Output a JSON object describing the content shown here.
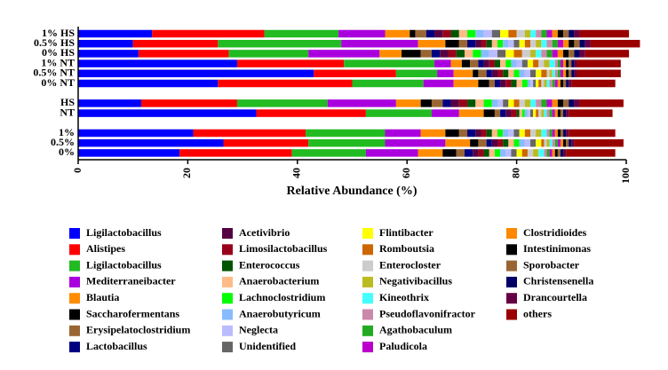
{
  "chart_data": {
    "type": "stacked-bar-horizontal",
    "x_label": "Relative Abundance (%)",
    "categories": [
      "1% HS",
      "0.5% HS",
      "0% HS",
      "1% NT",
      "0.5% NT",
      "0% NT",
      null,
      "HS",
      "NT",
      null,
      "1%",
      "0.5%",
      "0%"
    ],
    "xlim": [
      0,
      100
    ],
    "xticks": [
      0,
      20,
      40,
      60,
      80,
      100
    ],
    "series": [
      {
        "name": "Ligilactobacillus",
        "color": "#0000ff",
        "values": [
          13.5,
          10,
          11,
          29,
          43,
          25.5,
          null,
          11.5,
          32.5,
          null,
          21,
          26.5,
          18.5
        ]
      },
      {
        "name": "Alistipes",
        "color": "#ff0000",
        "values": [
          20.5,
          15.5,
          16.5,
          19.5,
          15,
          24.5,
          null,
          17.5,
          20,
          null,
          20.5,
          15.5,
          20.5
        ]
      },
      {
        "name": "Ligilactobacillus",
        "color": "#22bb22",
        "values": [
          13.5,
          22.5,
          14.5,
          16.5,
          7.5,
          13,
          null,
          16.5,
          12,
          null,
          14.5,
          14,
          13.5
        ]
      },
      {
        "name": "Mediterraneibacter",
        "color": "#aa00dd",
        "values": [
          8.5,
          14,
          13,
          3,
          3,
          5.5,
          null,
          12.5,
          5,
          null,
          6.5,
          11,
          9.5
        ]
      },
      {
        "name": "Blautia",
        "color": "#ff8c00",
        "values": [
          4.5,
          5,
          4,
          2,
          3.5,
          4.5,
          null,
          4.5,
          4.5,
          null,
          4.5,
          4.5,
          4.5
        ]
      },
      {
        "name": "Saccharofermentans",
        "color": "#000000",
        "values": [
          1,
          2.5,
          3.5,
          1.5,
          1,
          2,
          null,
          2,
          2,
          null,
          2.5,
          1.5,
          2.5
        ]
      },
      {
        "name": "Erysipelatoclostridium",
        "color": "#996633",
        "values": [
          2,
          1.5,
          2,
          1.5,
          1.5,
          1,
          null,
          2,
          1,
          null,
          1.5,
          1.5,
          1.5
        ]
      },
      {
        "name": "Lactobacillus",
        "color": "#000080",
        "values": [
          1.5,
          1.5,
          1.5,
          1,
          1,
          1,
          null,
          1.5,
          1,
          null,
          1.5,
          1,
          1.5
        ]
      },
      {
        "name": "Acetivibrio",
        "color": "#550044",
        "values": [
          1.5,
          1,
          1.5,
          1,
          1,
          1,
          null,
          1.5,
          1,
          null,
          1,
          1,
          1
        ]
      },
      {
        "name": "Limosilactobacillus",
        "color": "#99001a",
        "values": [
          1.5,
          1,
          1.5,
          1,
          1,
          1,
          null,
          1.5,
          1,
          null,
          1,
          1,
          1
        ]
      },
      {
        "name": "Enterococcus",
        "color": "#005500",
        "values": [
          1.5,
          1,
          1.5,
          1,
          1,
          1,
          null,
          1.5,
          0.5,
          null,
          1,
          1,
          1
        ]
      },
      {
        "name": "Anaerobacterium",
        "color": "#ffbb88",
        "values": [
          1.5,
          1,
          1.5,
          1,
          1,
          1,
          null,
          1.5,
          0.5,
          null,
          1,
          1,
          1
        ]
      },
      {
        "name": "Lachnoclostridium",
        "color": "#00ff00",
        "values": [
          1.5,
          1,
          1.5,
          1,
          1,
          1,
          null,
          1.5,
          0.5,
          null,
          1,
          1,
          1
        ]
      },
      {
        "name": "Anaerobutyricum",
        "color": "#88bbff",
        "values": [
          1.5,
          1,
          1.5,
          1,
          1,
          0.5,
          null,
          1,
          0.5,
          null,
          1,
          1,
          1
        ]
      },
      {
        "name": "Neglecta",
        "color": "#bbbbff",
        "values": [
          1.5,
          1,
          1.5,
          1,
          1,
          0.5,
          null,
          1,
          0.5,
          null,
          1,
          1,
          1
        ]
      },
      {
        "name": "Unidentified",
        "color": "#666666",
        "values": [
          1.5,
          1,
          1.5,
          1,
          1,
          0.5,
          null,
          1,
          0.5,
          null,
          1,
          1,
          1
        ]
      },
      {
        "name": "Flintibacter",
        "color": "#ffff00",
        "values": [
          1.5,
          1,
          1.5,
          1,
          1,
          0.5,
          null,
          1,
          0.5,
          null,
          1,
          1,
          1
        ]
      },
      {
        "name": "Romboutsia",
        "color": "#cc6600",
        "values": [
          1.5,
          1,
          1.5,
          1,
          1,
          0.5,
          null,
          1,
          0.5,
          null,
          1,
          0.5,
          1
        ]
      },
      {
        "name": "Enterocloster",
        "color": "#cccccc",
        "values": [
          1.5,
          1,
          1.5,
          1,
          0.5,
          0.5,
          null,
          1,
          0.5,
          null,
          1,
          0.5,
          1
        ]
      },
      {
        "name": "Negativibacillus",
        "color": "#bbbb22",
        "values": [
          1,
          1,
          1,
          1,
          0.5,
          0.5,
          null,
          1,
          0.5,
          null,
          1,
          0.5,
          1
        ]
      },
      {
        "name": "Kineothrix",
        "color": "#44ffff",
        "values": [
          1,
          1,
          1,
          1,
          0.5,
          0.5,
          null,
          1,
          0.5,
          null,
          1,
          0.5,
          1
        ]
      },
      {
        "name": "Pseudoflavonifractor",
        "color": "#cc88aa",
        "values": [
          1,
          1,
          1,
          0.5,
          0.5,
          0.5,
          null,
          1,
          0.5,
          null,
          0.5,
          0.5,
          0.5
        ]
      },
      {
        "name": "Agathobaculum",
        "color": "#22aa22",
        "values": [
          1,
          1,
          1,
          0.5,
          0.5,
          0.5,
          null,
          1,
          0.5,
          null,
          0.5,
          0.5,
          0.5
        ]
      },
      {
        "name": "Paludicola",
        "color": "#bb00cc",
        "values": [
          1,
          1,
          1,
          0.5,
          0.5,
          0.5,
          null,
          1,
          0.5,
          null,
          0.5,
          0.5,
          0.5
        ]
      },
      {
        "name": "Clostridioides",
        "color": "#ff8800",
        "values": [
          1,
          1,
          1,
          0.5,
          0.5,
          0.5,
          null,
          1,
          0.5,
          null,
          0.5,
          0.5,
          0.5
        ]
      },
      {
        "name": "Intestinimonas",
        "color": "#000000",
        "values": [
          1,
          1,
          1,
          0.5,
          0.5,
          0.5,
          null,
          1,
          0.5,
          null,
          0.5,
          0.5,
          0.5
        ]
      },
      {
        "name": "Sporobacter",
        "color": "#996633",
        "values": [
          1,
          1,
          1,
          0.5,
          0.5,
          0.5,
          null,
          1,
          0.5,
          null,
          0.5,
          0.5,
          0.5
        ]
      },
      {
        "name": "Christensenella",
        "color": "#000066",
        "values": [
          1,
          1,
          1,
          0.5,
          0.5,
          0.5,
          null,
          1,
          0.5,
          null,
          0.5,
          0.5,
          0.5
        ]
      },
      {
        "name": "Drancourtella",
        "color": "#660044",
        "values": [
          1,
          1,
          1,
          0.5,
          0.5,
          0.5,
          null,
          1,
          0.5,
          null,
          0.5,
          0.5,
          0.5
        ]
      },
      {
        "name": "others",
        "color": "#990000",
        "values": [
          9,
          9,
          8,
          8,
          8,
          8,
          null,
          8,
          8,
          null,
          8.5,
          9,
          9
        ]
      }
    ]
  }
}
